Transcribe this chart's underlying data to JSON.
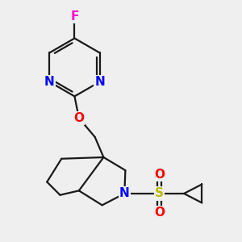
{
  "background_color": "#efefef",
  "bond_color": "#1a1a1a",
  "bond_width": 1.6,
  "atom_colors": {
    "F": "#ff00cc",
    "N": "#0000ff",
    "O": "#ff0000",
    "S": "#bbbb00",
    "C": "#1a1a1a"
  }
}
